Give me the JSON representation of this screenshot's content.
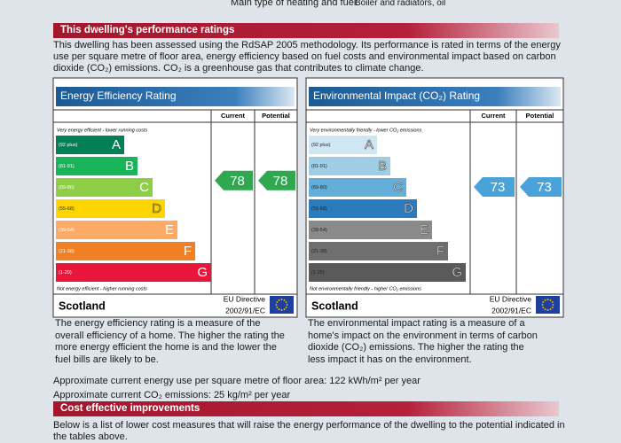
{
  "header": {
    "label": "Main type of heating and fuel:",
    "value": "Boiler and radiators, oil"
  },
  "ratings": {
    "title": "This dwelling's performance ratings",
    "intro": [
      "This dwelling has been assessed using the RdSAP 2005 methodology. Its performance is rated in terms of the energy",
      "use per square metre of floor area, energy efficiency based on fuel costs and environmental impact based on carbon",
      "dioxide (CO₂) emissions. CO₂ is a greenhouse gas that contributes to climate change."
    ],
    "bands": [
      {
        "range": "(92 plus)",
        "letter": "A"
      },
      {
        "range": "(81-91)",
        "letter": "B"
      },
      {
        "range": "(69-80)",
        "letter": "C"
      },
      {
        "range": "(55-68)",
        "letter": "D"
      },
      {
        "range": "(39-54)",
        "letter": "E"
      },
      {
        "range": "(21-38)",
        "letter": "F"
      },
      {
        "range": "(1-20)",
        "letter": "G"
      }
    ],
    "panels": [
      {
        "title": "Energy Efficiency Rating",
        "current_label": "Current",
        "potential_label": "Potential",
        "top_note": "Very energy efficient - lower running costs",
        "bottom_note": "Not energy efficient - higher running costs",
        "current": "78",
        "potential": "78",
        "region": "Scotland",
        "directive": [
          "EU Directive",
          "2002/91/EC"
        ],
        "description": [
          "The energy efficiency rating is a measure of the",
          "overall efficiency of a home. The higher the rating the",
          "more energy efficient the home is and the lower the",
          "fuel bills are likely to be."
        ]
      },
      {
        "title": "Environmental Impact (CO₂) Rating",
        "current_label": "Current",
        "potential_label": "Potential",
        "top_note": "Very environmentally friendly - lower CO₂ emissions",
        "bottom_note": "Not environmentally friendly - higher CO₂ emissions",
        "current": "73",
        "potential": "73",
        "region": "Scotland",
        "directive": [
          "EU Directive",
          "2002/91/EC"
        ],
        "description": [
          "The environmental impact rating is a measure of a",
          "home's impact on the environment in terms of carbon",
          "dioxide (CO₂) emissions. The higher the rating the",
          "less impact it has on the environment."
        ]
      }
    ],
    "energy_use": "Approximate current energy use per square metre of floor area: 122 kWh/m² per year",
    "co2_emissions": "Approximate current CO₂ emissions: 25 kg/m² per year"
  },
  "improvements": {
    "title": "Cost effective improvements",
    "body": [
      "Below is a list of lower cost measures that will raise the energy performance of the dwelling to the potential indicated in",
      "the tables above."
    ]
  }
}
